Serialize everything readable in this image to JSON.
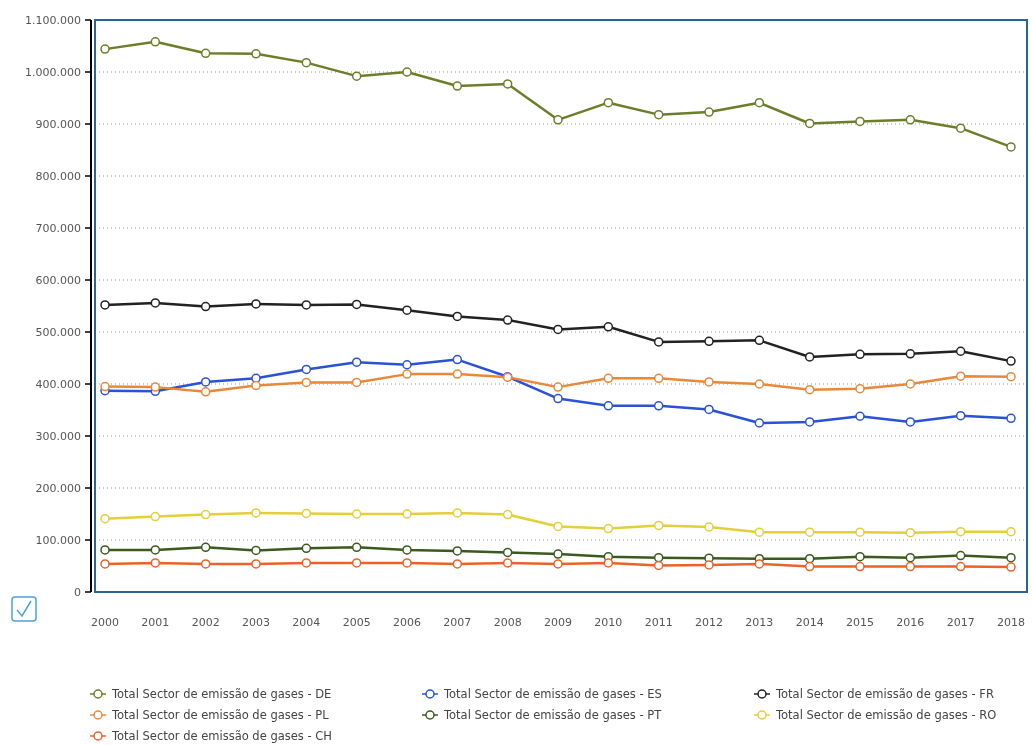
{
  "chart_data": {
    "type": "line",
    "categories": [
      "2000",
      "2001",
      "2002",
      "2003",
      "2004",
      "2005",
      "2006",
      "2007",
      "2008",
      "2009",
      "2010",
      "2011",
      "2012",
      "2013",
      "2014",
      "2015",
      "2016",
      "2017",
      "2018"
    ],
    "ylim": [
      0,
      1100000
    ],
    "yticks": [
      {
        "value": 0,
        "label": "0"
      },
      {
        "value": 100000,
        "label": "100.000"
      },
      {
        "value": 200000,
        "label": "200.000"
      },
      {
        "value": 300000,
        "label": "300.000"
      },
      {
        "value": 400000,
        "label": "400.000"
      },
      {
        "value": 500000,
        "label": "500.000"
      },
      {
        "value": 600000,
        "label": "600.000"
      },
      {
        "value": 700000,
        "label": "700.000"
      },
      {
        "value": 800000,
        "label": "800.000"
      },
      {
        "value": 900000,
        "label": "900.000"
      },
      {
        "value": 1000000,
        "label": "1.000.000"
      },
      {
        "value": 1100000,
        "label": "1.100.000"
      }
    ],
    "grid": "y",
    "legend": "bottom",
    "marker": "circle",
    "line_style": "solid",
    "series": [
      {
        "name": "Total Sector de emissão de gases - DE",
        "color": "#6b7f2a",
        "values": [
          1044000,
          1058000,
          1036000,
          1035000,
          1018000,
          992000,
          1000000,
          973000,
          977000,
          908000,
          941000,
          918000,
          923000,
          941000,
          901000,
          905000,
          908000,
          892000,
          856000
        ]
      },
      {
        "name": "Total Sector de emissão de gases - ES",
        "color": "#2a52d6",
        "values": [
          387000,
          386000,
          404000,
          411000,
          428000,
          442000,
          437000,
          447000,
          414000,
          372000,
          358000,
          358000,
          351000,
          325000,
          327000,
          338000,
          327000,
          339000,
          334000
        ]
      },
      {
        "name": "Total Sector de emissão de gases - FR",
        "color": "#222222",
        "values": [
          552000,
          556000,
          549000,
          554000,
          552000,
          553000,
          542000,
          530000,
          523000,
          505000,
          510000,
          481000,
          482000,
          484000,
          452000,
          457000,
          458000,
          463000,
          444000
        ]
      },
      {
        "name": "Total Sector de emissão de gases - PL",
        "color": "#e8893a",
        "values": [
          395000,
          394000,
          385000,
          397000,
          403000,
          403000,
          419000,
          419000,
          413000,
          394000,
          411000,
          411000,
          404000,
          400000,
          389000,
          391000,
          400000,
          415000,
          414000
        ]
      },
      {
        "name": "Total Sector de emissão de gases - PT",
        "color": "#3b5a1f",
        "values": [
          81000,
          81000,
          86000,
          80000,
          84000,
          86000,
          81000,
          79000,
          76000,
          73000,
          68000,
          66000,
          65000,
          64000,
          64000,
          68000,
          66000,
          70000,
          66000
        ]
      },
      {
        "name": "Total Sector de emissão de gases - RO",
        "color": "#e3cf3a",
        "values": [
          141000,
          145000,
          149000,
          152000,
          151000,
          150000,
          150000,
          152000,
          149000,
          126000,
          122000,
          128000,
          125000,
          115000,
          115000,
          115000,
          114000,
          116000,
          116000
        ]
      },
      {
        "name": "Total Sector de emissão de gases - CH",
        "color": "#e8642a",
        "values": [
          54000,
          56000,
          54000,
          54000,
          56000,
          56000,
          56000,
          54000,
          56000,
          54000,
          56000,
          51000,
          52000,
          54000,
          49000,
          49000,
          49000,
          49000,
          48000
        ]
      }
    ]
  }
}
